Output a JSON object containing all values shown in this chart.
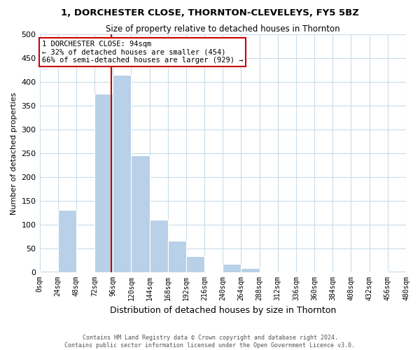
{
  "title": "1, DORCHESTER CLOSE, THORNTON-CLEVELEYS, FY5 5BZ",
  "subtitle": "Size of property relative to detached houses in Thornton",
  "xlabel": "Distribution of detached houses by size in Thornton",
  "ylabel": "Number of detached properties",
  "bar_color": "#b8d0e8",
  "bin_width": 24,
  "bin_edges": [
    0,
    24,
    48,
    72,
    96,
    120,
    144,
    168,
    192,
    216,
    240,
    264,
    288,
    312,
    336,
    360,
    384,
    408,
    432,
    456,
    480
  ],
  "bar_heights": [
    2,
    130,
    0,
    375,
    415,
    245,
    110,
    65,
    33,
    0,
    17,
    8,
    0,
    0,
    0,
    0,
    0,
    0,
    0,
    2
  ],
  "property_line_x": 94,
  "property_line_color": "#cc0000",
  "annotation_text": "1 DORCHESTER CLOSE: 94sqm\n← 32% of detached houses are smaller (454)\n66% of semi-detached houses are larger (929) →",
  "annotation_box_color": "#ffffff",
  "annotation_box_edge_color": "#cc0000",
  "ylim": [
    0,
    500
  ],
  "xtick_labels": [
    "0sqm",
    "24sqm",
    "48sqm",
    "72sqm",
    "96sqm",
    "120sqm",
    "144sqm",
    "168sqm",
    "192sqm",
    "216sqm",
    "240sqm",
    "264sqm",
    "288sqm",
    "312sqm",
    "336sqm",
    "360sqm",
    "384sqm",
    "408sqm",
    "432sqm",
    "456sqm",
    "480sqm"
  ],
  "footer1": "Contains HM Land Registry data © Crown copyright and database right 2024.",
  "footer2": "Contains public sector information licensed under the Open Government Licence v3.0.",
  "background_color": "#ffffff",
  "grid_color": "#c8dcea"
}
